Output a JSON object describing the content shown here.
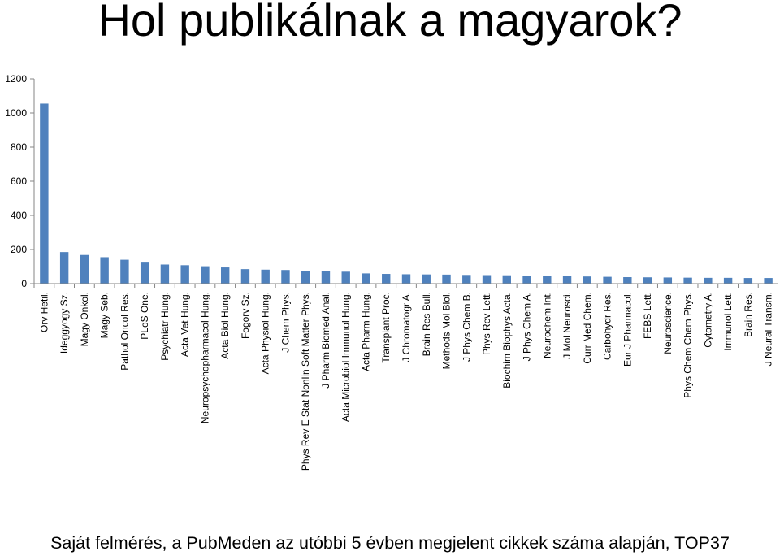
{
  "chart_data": {
    "type": "bar",
    "title": "Hol publikálnak a magyarok?",
    "subtitle": "Saját felmérés, a PubMeden az utóbbi 5 évben megjelent cikkek száma alapján, TOP37",
    "xlabel": "",
    "ylabel": "",
    "ylim": [
      0,
      1200
    ],
    "yticks": [
      0,
      200,
      400,
      600,
      800,
      1000,
      1200
    ],
    "grid": false,
    "bar_color": "#4f81bd",
    "categories": [
      "Orv Hetil.",
      "Ideggyogy Sz.",
      "Magy Onkol.",
      "Magy Seb.",
      "Pathol Oncol Res.",
      "PLoS One.",
      "Psychiatr Hung.",
      "Acta Vet Hung.",
      "Neuropsychopharmacol Hung.",
      "Acta Biol Hung.",
      "Fogorv Sz.",
      "Acta Physiol Hung.",
      "J Chem Phys.",
      "Phys Rev E Stat Nonlin Soft Matter Phys.",
      "J Pharm Biomed Anal.",
      "Acta Microbiol Immunol Hung.",
      "Acta Pharm Hung.",
      "Transplant Proc.",
      "J Chromatogr A.",
      "Brain Res Bull.",
      "Methods Mol Biol.",
      "J Phys Chem B.",
      "Phys Rev Lett.",
      "Biochim Biophys Acta.",
      "J Phys Chem A.",
      "Neurochem Int.",
      "J Mol Neurosci.",
      "Curr Med Chem.",
      "Carbohydr Res.",
      "Eur J Pharmacol.",
      "FEBS Lett.",
      "Neuroscience.",
      "Phys Chem Chem Phys.",
      "Cytometry A.",
      "Immunol Lett.",
      "Brain Res.",
      "J Neural Transm."
    ],
    "values": [
      1055,
      185,
      168,
      155,
      140,
      128,
      112,
      108,
      102,
      95,
      85,
      82,
      80,
      76,
      72,
      70,
      60,
      57,
      55,
      54,
      53,
      51,
      50,
      49,
      47,
      45,
      44,
      42,
      40,
      38,
      37,
      36,
      35,
      34,
      34,
      33,
      33
    ]
  }
}
